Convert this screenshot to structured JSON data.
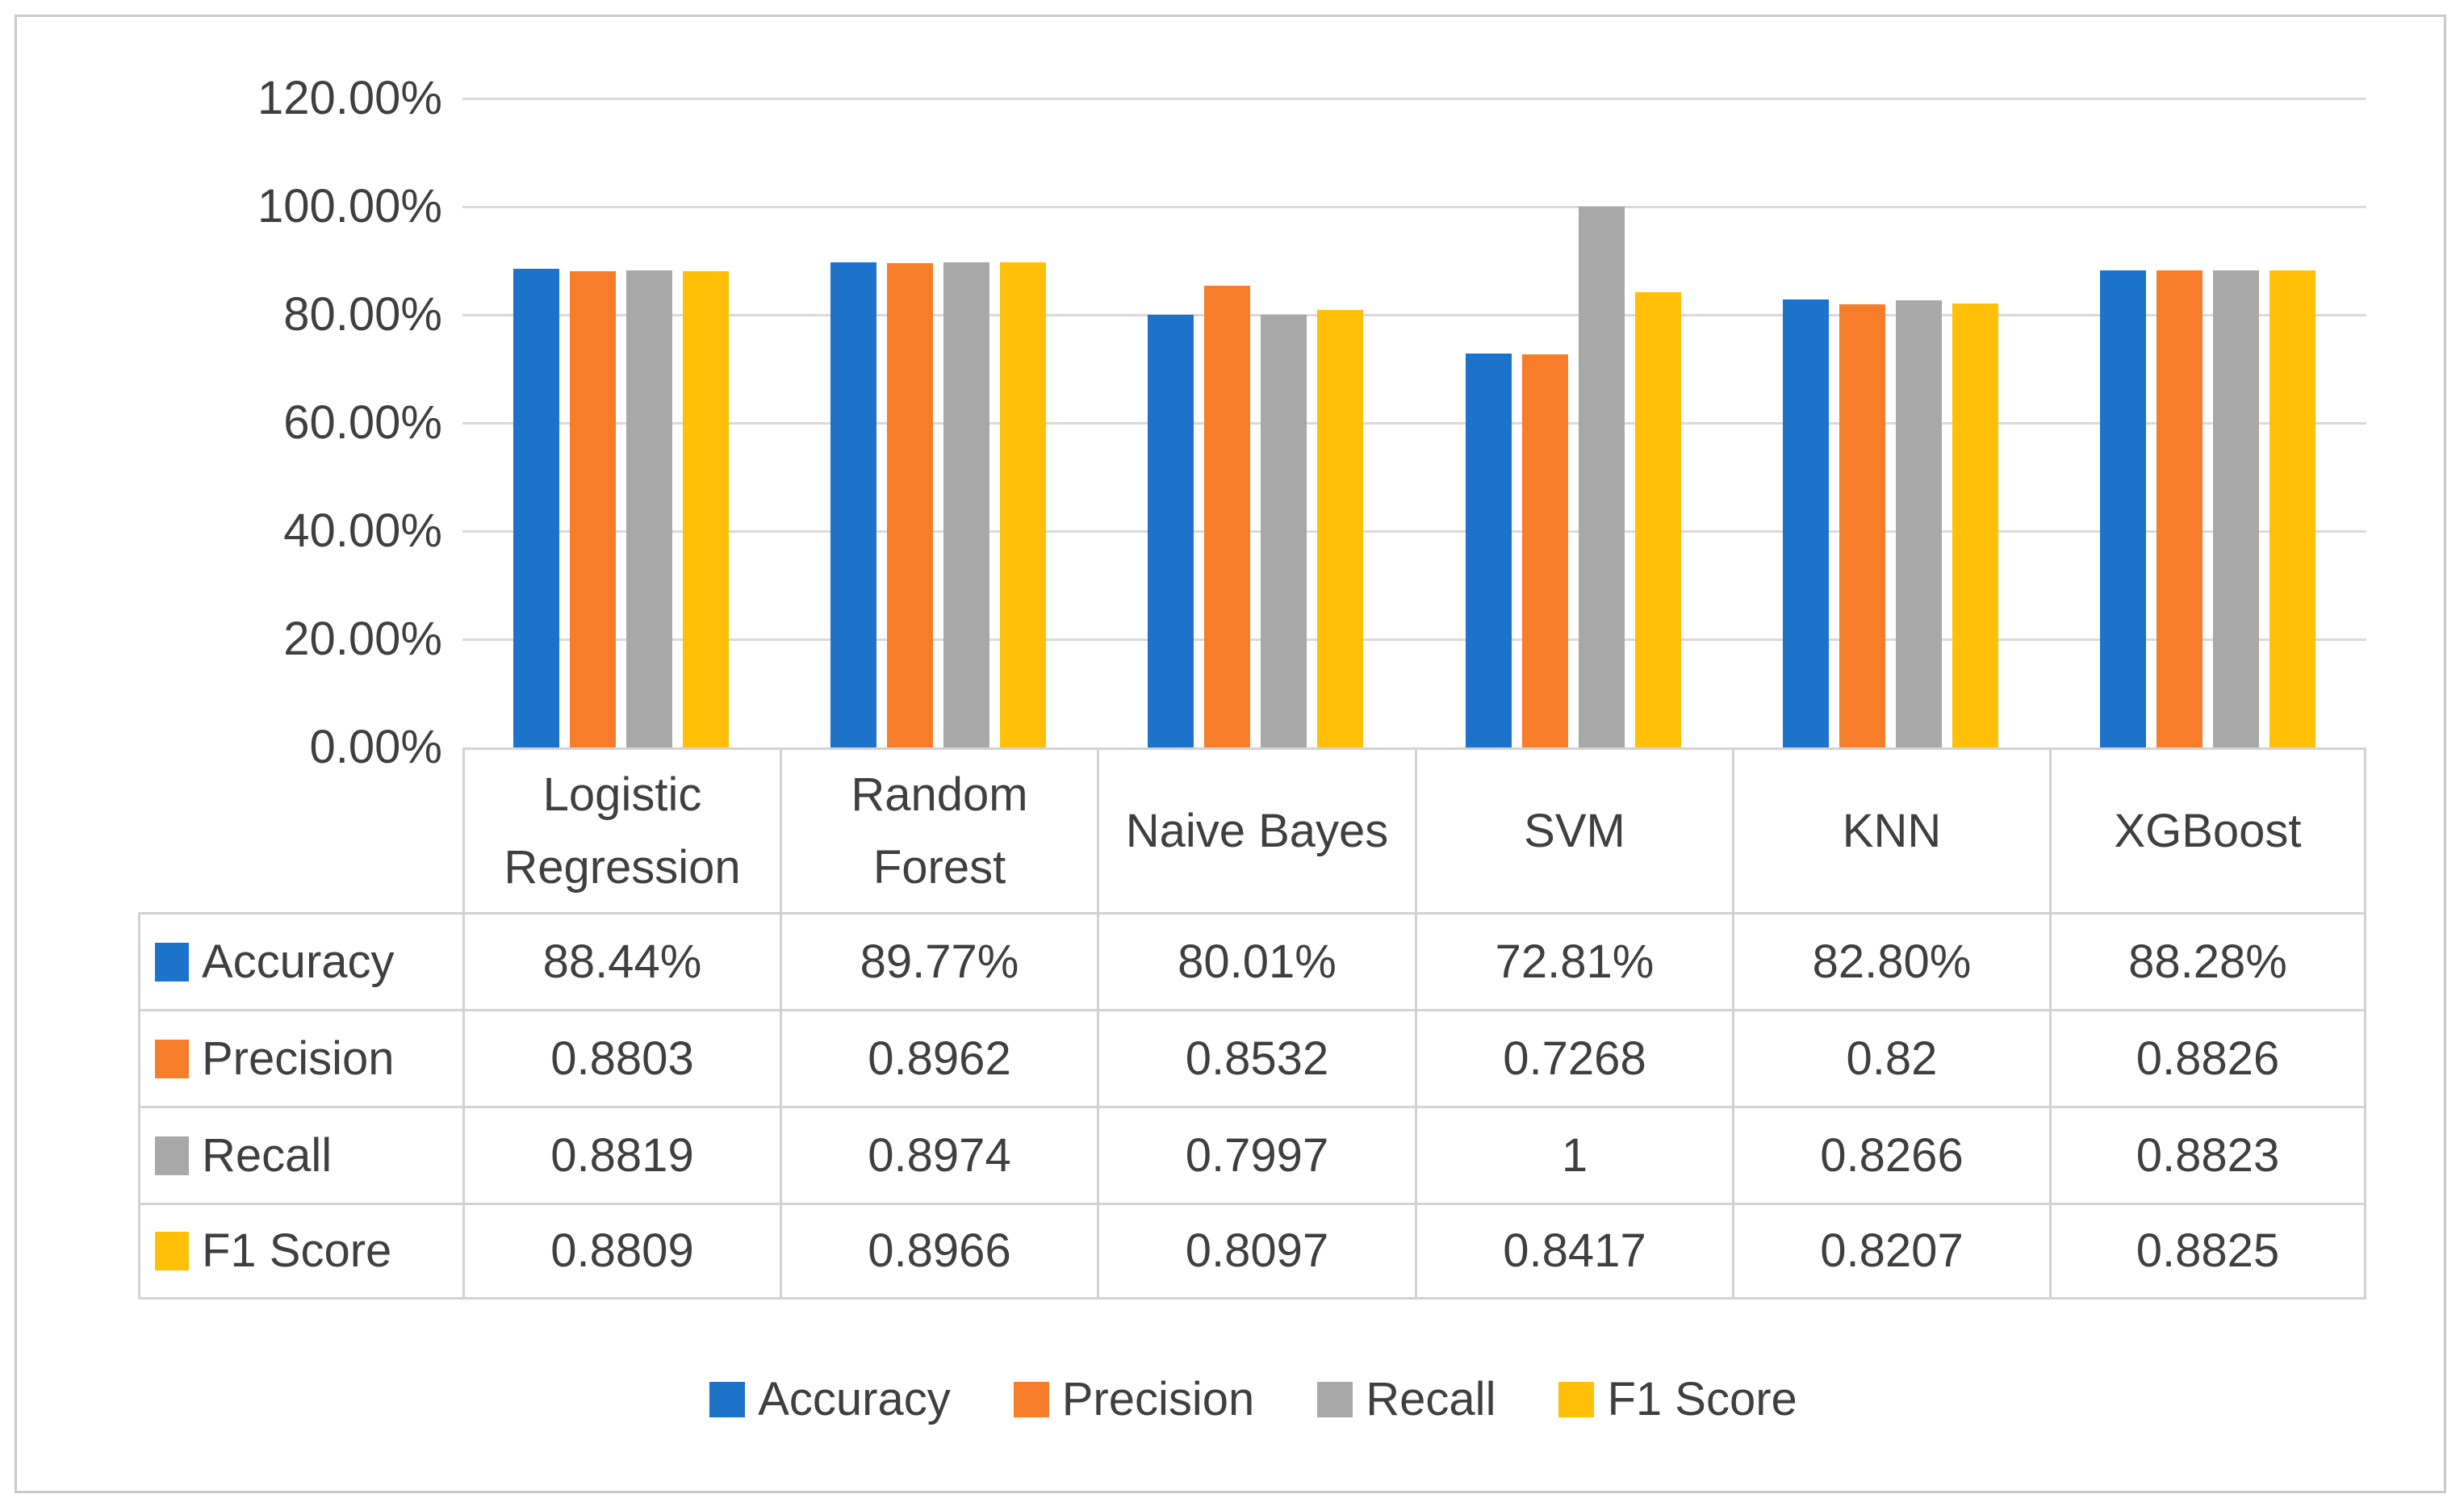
{
  "figure": {
    "background": "#FFFFFF",
    "border_color": "#C9C9C9",
    "grid_color": "#D9D9D9",
    "table_border_color": "#D2D2D2",
    "text_color": "#3F3F3F"
  },
  "chart_data": {
    "type": "bar",
    "title": "",
    "xlabel": "",
    "ylabel": "",
    "categories": [
      "Logistic Regression",
      "Random Forest",
      "Naive Bayes",
      "SVM",
      "KNN",
      "XGBoost"
    ],
    "series": [
      {
        "name": "Accuracy",
        "color": "#1D73C9",
        "values": [
          0.8844,
          0.8977,
          0.8001,
          0.7281,
          0.828,
          0.8828
        ],
        "display": [
          "88.44%",
          "89.77%",
          "80.01%",
          "72.81%",
          "82.80%",
          "88.28%"
        ]
      },
      {
        "name": "Precision",
        "color": "#F87D2A",
        "values": [
          0.8803,
          0.8962,
          0.8532,
          0.7268,
          0.82,
          0.8826
        ],
        "display": [
          "0.8803",
          "0.8962",
          "0.8532",
          "0.7268",
          "0.82",
          "0.8826"
        ]
      },
      {
        "name": "Recall",
        "color": "#A8A8A8",
        "values": [
          0.8819,
          0.8974,
          0.7997,
          1.0,
          0.8266,
          0.8823
        ],
        "display": [
          "0.8819",
          "0.8974",
          "0.7997",
          "1",
          "0.8266",
          "0.8823"
        ]
      },
      {
        "name": "F1 Score",
        "color": "#FFC007",
        "values": [
          0.8809,
          0.8966,
          0.8097,
          0.8417,
          0.8207,
          0.8825
        ],
        "display": [
          "0.8809",
          "0.8966",
          "0.8097",
          "0.8417",
          "0.8207",
          "0.8825"
        ]
      }
    ],
    "y_axis": {
      "min": 0,
      "max": 1.2,
      "tick_step": 0.2,
      "tick_labels": [
        "120.00%",
        "100.00%",
        "80.00%",
        "60.00%",
        "40.00%",
        "20.00%",
        "0.00%"
      ]
    },
    "legend": {
      "position": "bottom",
      "items": [
        "Accuracy",
        "Precision",
        "Recall",
        "F1 Score"
      ]
    },
    "grid": true,
    "data_table_shown": true
  }
}
